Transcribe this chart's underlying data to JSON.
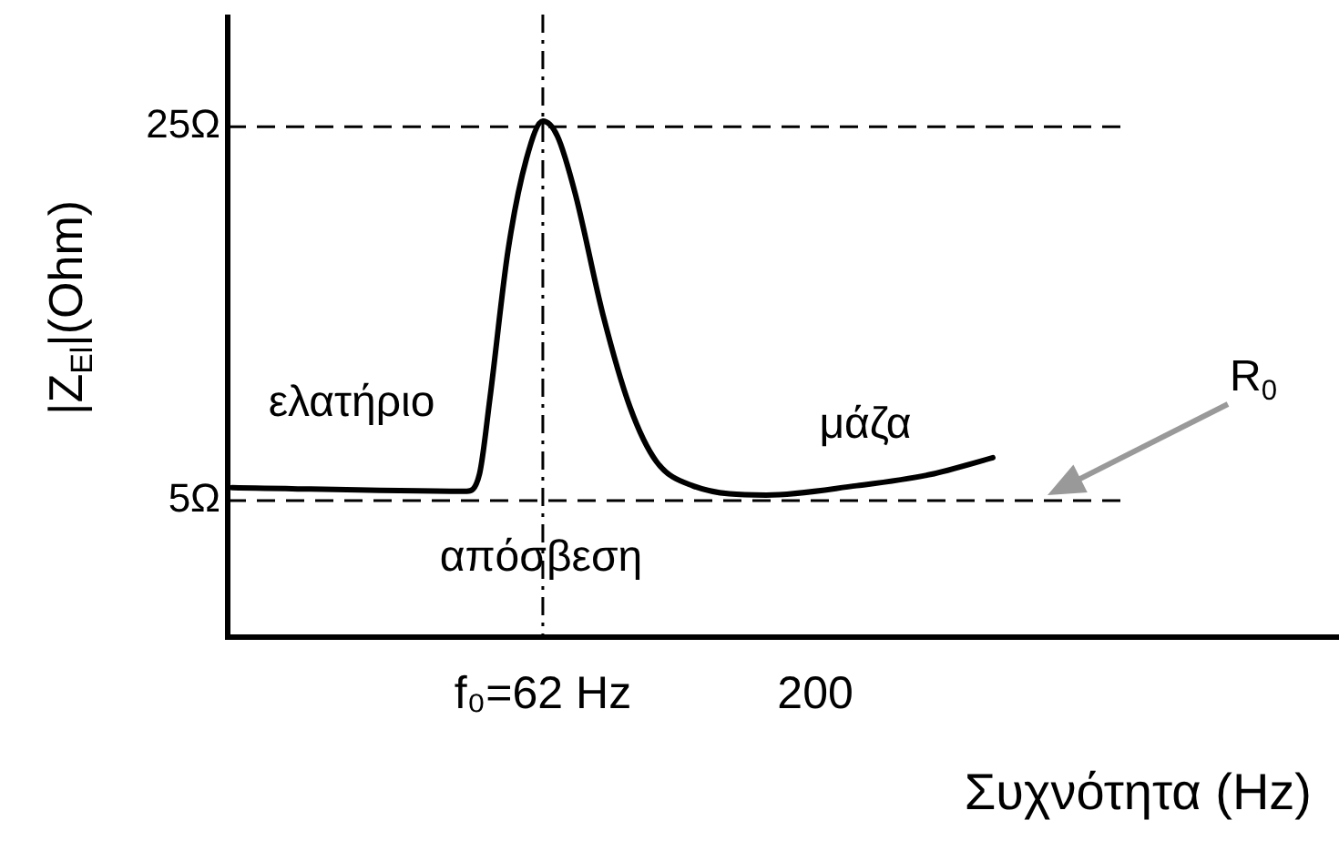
{
  "chart_data": {
    "type": "line",
    "xlabel": "Συχνότητα (Hz)",
    "ylabel": "|Z$_{El}$|(Ohm)",
    "log": "x",
    "xlim": [
      16,
      1900
    ],
    "ylim": [
      -2.3,
      31
    ],
    "xticks": [
      {
        "value": 62,
        "label": "f₀=62 Hz"
      },
      200
    ],
    "yticks": [
      {
        "value": 5,
        "label": "5Ω"
      },
      {
        "value": 25,
        "label": "25Ω"
      }
    ],
    "grid": false,
    "legend": false,
    "marker": "none",
    "line_style": "solid",
    "x": [
      16.3,
      44.7,
      47.2,
      49.4,
      53.4,
      57.8,
      62,
      66,
      71.3,
      80.2,
      90.2,
      101,
      118,
      162,
      239,
      328,
      429
    ],
    "series": [
      {
        "color": "#000000",
        "values": [
          5.7,
          5.5,
          6.4,
          10.5,
          18.4,
          23.3,
          25.3,
          24.5,
          21.4,
          15,
          10,
          7.1,
          5.8,
          5.3,
          5.8,
          6.4,
          7.3
        ]
      }
    ],
    "ref_lines": [
      {
        "axis": "y",
        "value": 5,
        "line_style": "dashed"
      },
      {
        "axis": "y",
        "value": 25,
        "line_style": "dashed"
      },
      {
        "axis": "x",
        "value": 62,
        "line_style": "dashdot"
      }
    ],
    "annotations": [
      "ελατήριο",
      "μάζα",
      "απόσβεση",
      "R$_{0}$"
    ]
  }
}
